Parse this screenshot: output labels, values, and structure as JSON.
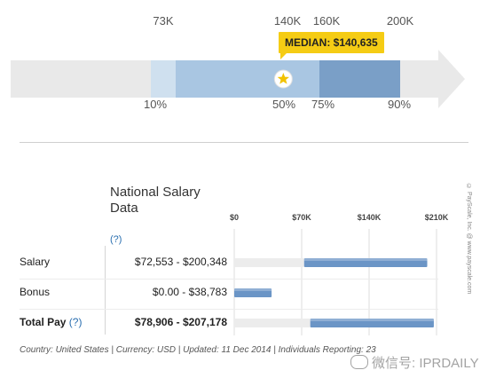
{
  "percentile_scale": {
    "top_ticks": [
      {
        "label": "73K",
        "value": 73000
      },
      {
        "label": "140K",
        "value": 140000
      },
      {
        "label": "160K",
        "value": 160000
      },
      {
        "label": "200K",
        "value": 200000
      }
    ],
    "bottom_ticks": [
      {
        "label": "10%",
        "value": 73000
      },
      {
        "label": "50%",
        "value": 140635
      },
      {
        "label": "75%",
        "value": 160000
      },
      {
        "label": "90%",
        "value": 200000
      }
    ],
    "median_label": "MEDIAN: $140,635",
    "median_value": 140635,
    "colors": {
      "track": "#e9e9e9",
      "p10_25": "#cfe0ef",
      "p25_50": "#a9c6e2",
      "p50_75": "#a9c6e2",
      "p75_90": "#7a9fc7",
      "badge": "#f5cc14",
      "star": "#f2c200"
    },
    "star_icon": "star-icon"
  },
  "table": {
    "title": "National Salary Data",
    "title_help": "(?)",
    "axis_labels": [
      "$0",
      "$70K",
      "$140K",
      "$210K"
    ],
    "rows": [
      {
        "label": "Salary",
        "range": "$72,553 - $200,348",
        "help": ""
      },
      {
        "label": "Bonus",
        "range": "$0.00 - $38,783",
        "help": ""
      },
      {
        "label": "Total Pay",
        "range": "$78,906 - $207,178",
        "help": "(?)"
      }
    ],
    "footer": "Country: United States | Currency: USD | Updated: 11 Dec 2014 | Individuals Reporting: 23",
    "copyright": "© PayScale, Inc. @ www.payscale.com",
    "watermark": "微信号: IPRDAILY",
    "colors": {
      "bar_track": "#ececec",
      "bar_fill": "#6b95c6",
      "grid": "#dddddd"
    }
  },
  "chart_data": [
    {
      "type": "bar",
      "title": "",
      "description_free": true,
      "series": [
        {
          "name": "",
          "values": [
            73000,
            140635,
            160000,
            200000
          ]
        }
      ],
      "categories": [
        "10%",
        "50%",
        "75%",
        "90%"
      ],
      "median": 140635
    },
    {
      "type": "bar",
      "title": "National Salary Data",
      "categories": [
        "Salary",
        "Bonus",
        "Total Pay"
      ],
      "x_ticks": [
        "$0",
        "$70K",
        "$140K",
        "$210K"
      ],
      "xlim": [
        0,
        210000
      ],
      "ranges": [
        {
          "category": "Salary",
          "min": 72553,
          "max": 200348
        },
        {
          "category": "Bonus",
          "min": 0,
          "max": 38783
        },
        {
          "category": "Total Pay",
          "min": 78906,
          "max": 207178
        }
      ],
      "grid": true
    }
  ]
}
